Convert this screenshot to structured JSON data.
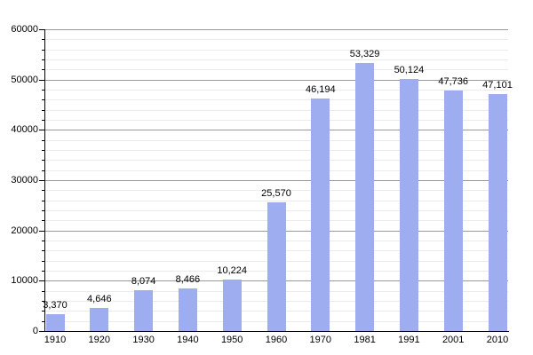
{
  "chart_data": {
    "type": "bar",
    "title": "",
    "xlabel": "",
    "ylabel": "",
    "categories": [
      "1910",
      "1920",
      "1930",
      "1940",
      "1950",
      "1960",
      "1970",
      "1981",
      "1991",
      "2001",
      "2010"
    ],
    "values": [
      3370,
      4646,
      8074,
      8466,
      10224,
      25570,
      46194,
      53329,
      50124,
      47736,
      47101
    ],
    "value_labels": [
      "3,370",
      "4,646",
      "8,074",
      "8,466",
      "10,224",
      "25,570",
      "46,194",
      "53,329",
      "50,124",
      "47,736",
      "47,101"
    ],
    "ylim": [
      0,
      60000
    ],
    "y_major_step": 10000,
    "y_minor_step": 2000,
    "y_tick_labels": [
      "0",
      "10000",
      "20000",
      "30000",
      "40000",
      "50000",
      "60000"
    ],
    "grid": "horizontal, major and minor, on",
    "legend": "none",
    "colors": {
      "bar_fill": "#9EACF0",
      "major_grid": "#999999",
      "minor_grid": "#ebebeb",
      "axis": "#000000",
      "text": "#000000"
    }
  }
}
